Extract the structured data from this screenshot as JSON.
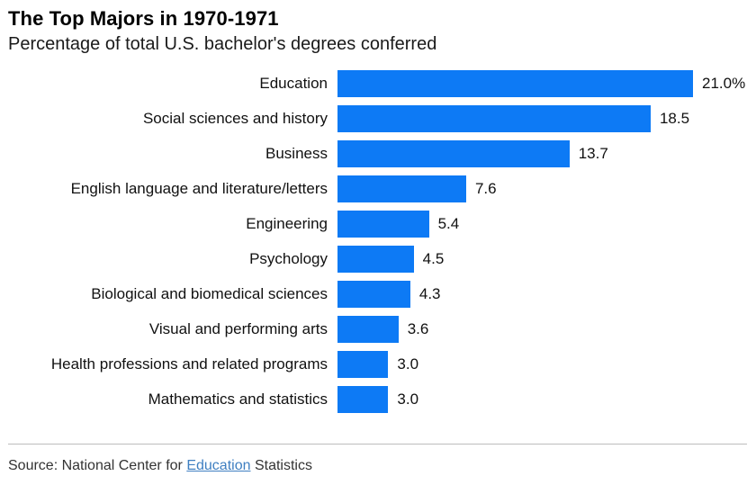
{
  "header": {
    "title": "The Top Majors in 1970-1971",
    "subtitle": "Percentage of total U.S. bachelor's degrees conferred"
  },
  "chart_data": {
    "type": "bar",
    "orientation": "horizontal",
    "title": "The Top Majors in 1970-1971",
    "subtitle": "Percentage of total U.S. bachelor's degrees conferred",
    "xlabel": "",
    "ylabel": "",
    "xlim": [
      0,
      21
    ],
    "grid": false,
    "legend": null,
    "bar_color": "#0d7af5",
    "categories": [
      "Education",
      "Social sciences and history",
      "Business",
      "English language and literature/letters",
      "Engineering",
      "Psychology",
      "Biological and biomedical sciences",
      "Visual and performing arts",
      "Health professions and related programs",
      "Mathematics and statistics"
    ],
    "values": [
      21.0,
      18.5,
      13.7,
      7.6,
      5.4,
      4.5,
      4.3,
      3.6,
      3.0,
      3.0
    ],
    "value_labels": [
      "21.0%",
      "18.5",
      "13.7",
      "7.6",
      "5.4",
      "4.5",
      "4.3",
      "3.6",
      "3.0",
      "3.0"
    ]
  },
  "footer": {
    "source_prefix": "Source: National Center for ",
    "source_link_text": "Education",
    "source_suffix": " Statistics",
    "link_color": "#3f7fc1"
  }
}
